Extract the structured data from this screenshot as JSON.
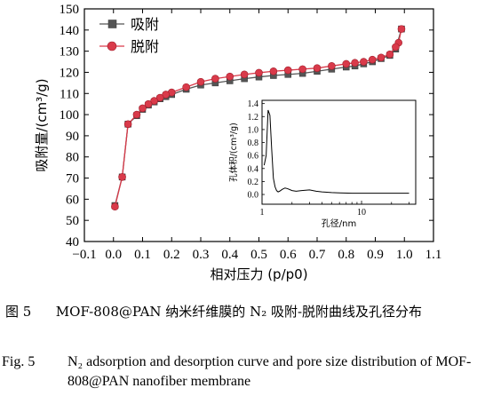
{
  "chart_data": [
    {
      "type": "line",
      "xlabel": "相对压力",
      "xlabel_var": "(p/p0)",
      "ylabel": "吸附量/(cm³/g)",
      "xlim": [
        -0.1,
        1.1
      ],
      "ylim": [
        40,
        150
      ],
      "xticks": [
        -0.1,
        0.0,
        0.1,
        0.2,
        0.3,
        0.4,
        0.5,
        0.6,
        0.7,
        0.8,
        0.9,
        1.0,
        1.1
      ],
      "xtick_labels": [
        "−0.1",
        "0.0",
        "0.1",
        "0.2",
        "0.3",
        "0.4",
        "0.5",
        "0.6",
        "0.7",
        "0.8",
        "0.9",
        "1.0",
        "1.1"
      ],
      "yticks": [
        40,
        50,
        60,
        70,
        80,
        90,
        100,
        110,
        120,
        130,
        140,
        150
      ],
      "legend_position": "top-left",
      "series": [
        {
          "name": "吸附",
          "marker": "square",
          "color": "#555555",
          "x": [
            0.005,
            0.03,
            0.05,
            0.08,
            0.1,
            0.12,
            0.14,
            0.16,
            0.18,
            0.2,
            0.25,
            0.3,
            0.35,
            0.4,
            0.45,
            0.5,
            0.55,
            0.6,
            0.65,
            0.7,
            0.75,
            0.8,
            0.83,
            0.86,
            0.89,
            0.92,
            0.95,
            0.97,
            0.99
          ],
          "y": [
            57,
            70.5,
            95.5,
            99.5,
            102.5,
            104.5,
            106,
            107.5,
            108.5,
            109.5,
            112,
            114,
            115,
            116,
            117,
            117.8,
            118.5,
            119,
            119.5,
            120.5,
            121.5,
            122.5,
            123,
            124,
            125,
            126.5,
            128,
            131,
            140.5
          ]
        },
        {
          "name": "脱附",
          "marker": "circle",
          "color": "#d93a4a",
          "x": [
            0.99,
            0.98,
            0.97,
            0.95,
            0.92,
            0.89,
            0.86,
            0.83,
            0.8,
            0.75,
            0.7,
            0.65,
            0.6,
            0.55,
            0.5,
            0.45,
            0.4,
            0.35,
            0.3,
            0.25,
            0.2,
            0.18,
            0.16,
            0.14,
            0.12,
            0.1,
            0.08,
            0.05,
            0.03,
            0.005
          ],
          "y": [
            140.5,
            134,
            132,
            128.5,
            127,
            126,
            125,
            124.5,
            124,
            123,
            122,
            121.5,
            121,
            120.5,
            119.8,
            119,
            118,
            117,
            115.5,
            113,
            110.5,
            109.5,
            108,
            106.5,
            105,
            103,
            100,
            95.5,
            70.5,
            56.5
          ]
        }
      ]
    },
    {
      "type": "line",
      "role": "inset",
      "xlabel": "孔径/nm",
      "ylabel": "孔体积/(cm³/g)",
      "x_scale": "log",
      "xlim": [
        1,
        35
      ],
      "ylim": [
        -0.15,
        1.45
      ],
      "xticks": [
        1,
        10
      ],
      "xtick_labels": [
        "1",
        "10"
      ],
      "yticks": [
        0.0,
        0.2,
        0.4,
        0.6,
        0.8,
        1.0,
        1.2,
        1.4
      ],
      "ytick_labels": [
        "0.0",
        "0.2",
        "0.4",
        "0.6",
        "0.8",
        "1.0",
        "1.2",
        "1.4"
      ],
      "series": [
        {
          "color": "#000000",
          "x": [
            1.05,
            1.1,
            1.15,
            1.2,
            1.25,
            1.3,
            1.35,
            1.4,
            1.45,
            1.5,
            1.6,
            1.7,
            1.8,
            2.0,
            2.2,
            2.5,
            3.0,
            3.5,
            4,
            5,
            6,
            8,
            10,
            15,
            20,
            30
          ],
          "y": [
            0.45,
            0.6,
            1.3,
            1.22,
            0.7,
            0.25,
            0.12,
            0.06,
            0.04,
            0.05,
            0.08,
            0.1,
            0.09,
            0.06,
            0.05,
            0.06,
            0.07,
            0.05,
            0.04,
            0.03,
            0.025,
            0.02,
            0.02,
            0.02,
            0.02,
            0.02
          ]
        }
      ]
    }
  ],
  "caption": {
    "cn_label": "图 5",
    "cn_text": "MOF-808@PAN 纳米纤维膜的 N₂ 吸附-脱附曲线及孔径分布",
    "en_label": "Fig. 5",
    "en_text": "N₂ adsorption and desorption curve and pore size distribution of MOF-808@PAN nanofiber membrane"
  }
}
